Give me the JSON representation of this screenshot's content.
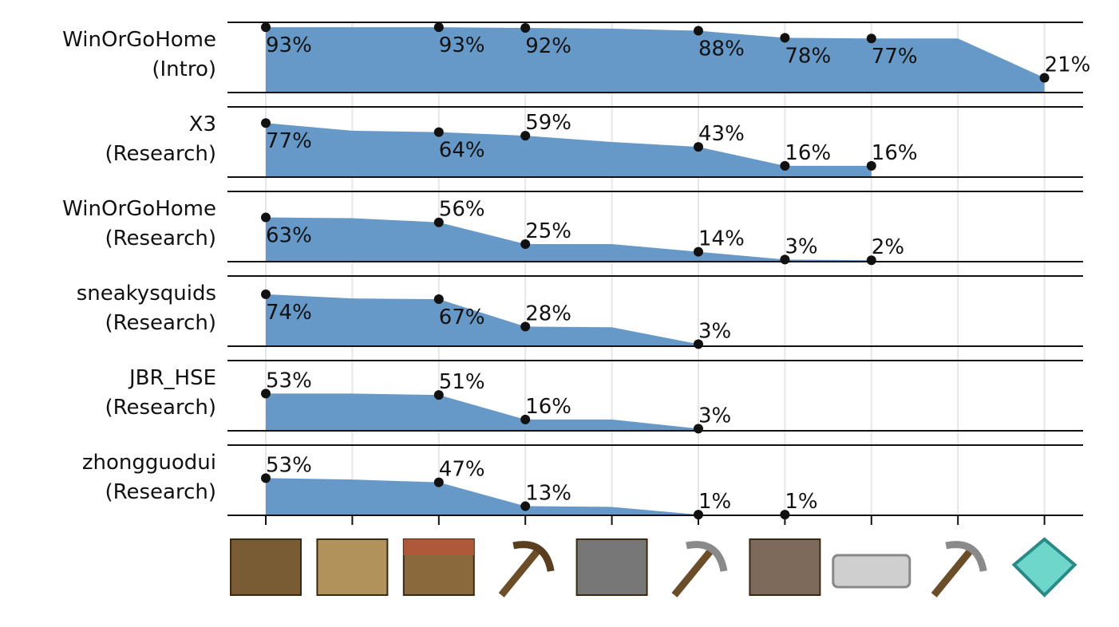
{
  "chart_data": [
    {
      "type": "area",
      "title": "WinOrGoHome\n(Intro)",
      "categories": [
        null,
        null,
        null,
        null,
        null,
        null,
        null,
        null,
        null,
        null
      ],
      "values": [
        93,
        93,
        93,
        92,
        91,
        88,
        78,
        77,
        77,
        21
      ],
      "value_labels": [
        "93%",
        null,
        "93%",
        "92%",
        null,
        "88%",
        "78%",
        "77%",
        null,
        "21%"
      ],
      "color": "#6699c7",
      "ylim": [
        0,
        100
      ]
    },
    {
      "type": "area",
      "title": "X3\n(Research)",
      "categories": [
        null,
        null,
        null,
        null,
        null,
        null,
        null,
        null,
        null,
        null
      ],
      "values": [
        77,
        66,
        64,
        59,
        50,
        43,
        16,
        16,
        null,
        null
      ],
      "value_labels": [
        "77%",
        null,
        "64%",
        "59%",
        null,
        "43%",
        "16%",
        "16%",
        null,
        null
      ],
      "color": "#6699c7",
      "ylim": [
        0,
        100
      ]
    },
    {
      "type": "area",
      "title": "WinOrGoHome\n(Research)",
      "categories": [
        null,
        null,
        null,
        null,
        null,
        null,
        null,
        null,
        null,
        null
      ],
      "values": [
        63,
        62,
        56,
        25,
        25,
        14,
        3,
        2,
        null,
        null
      ],
      "value_labels": [
        "63%",
        null,
        "56%",
        "25%",
        null,
        "14%",
        "3%",
        "2%",
        null,
        null
      ],
      "color": "#6699c7",
      "ylim": [
        0,
        100
      ]
    },
    {
      "type": "area",
      "title": "sneakysquids\n(Research)",
      "categories": [
        null,
        null,
        null,
        null,
        null,
        null,
        null,
        null,
        null,
        null
      ],
      "values": [
        74,
        68,
        67,
        28,
        27,
        3,
        null,
        null,
        null,
        null
      ],
      "value_labels": [
        "74%",
        null,
        "67%",
        "28%",
        null,
        "3%",
        null,
        null,
        null,
        null
      ],
      "color": "#6699c7",
      "ylim": [
        0,
        100
      ]
    },
    {
      "type": "area",
      "title": "JBR_HSE\n(Research)",
      "categories": [
        null,
        null,
        null,
        null,
        null,
        null,
        null,
        null,
        null,
        null
      ],
      "values": [
        53,
        53,
        51,
        16,
        16,
        3,
        null,
        null,
        null,
        null
      ],
      "value_labels": [
        "53%",
        null,
        "51%",
        "16%",
        null,
        "3%",
        null,
        null,
        null,
        null
      ],
      "color": "#6699c7",
      "ylim": [
        0,
        100
      ]
    },
    {
      "type": "area",
      "title": "zhongguodui\n(Research)",
      "categories": [
        null,
        null,
        null,
        null,
        null,
        null,
        null,
        null,
        null,
        null
      ],
      "values": [
        53,
        51,
        47,
        13,
        12,
        1,
        1,
        null,
        null,
        null
      ],
      "value_labels": [
        "53%",
        null,
        "47%",
        "13%",
        null,
        "1%",
        "1%",
        null,
        null,
        null
      ],
      "color": "#6699c7",
      "ylim": [
        0,
        100
      ]
    }
  ]
}
